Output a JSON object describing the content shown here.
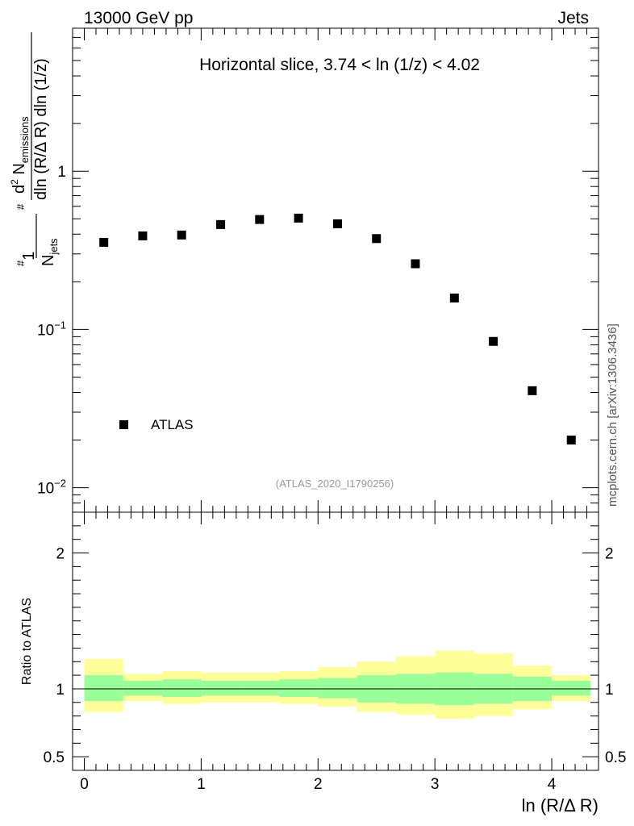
{
  "header": {
    "left": "13000 GeV pp",
    "right": "Jets"
  },
  "side_label": "mcplots.cern.ch [arXiv:1306.3436]",
  "chart_data": [
    {
      "type": "scatter",
      "title": "Horizontal slice, 3.74 < ln (1/z) < 4.02",
      "watermark": "(ATLAS_2020_I1790256)",
      "ylabel": "1/N_jets dN_emissions/dln(R/ΔR) dln(1/z)",
      "yscale": "log",
      "ylim": [
        0.007,
        8.0
      ],
      "xlim": [
        -0.1,
        4.4
      ],
      "y_tick_labels": [
        "10^-2",
        "10^-1",
        "1"
      ],
      "legend": {
        "position": "bottom-left",
        "entries": [
          "ATLAS"
        ]
      },
      "series": [
        {
          "name": "ATLAS",
          "marker": "square",
          "color": "#000000",
          "x": [
            0.167,
            0.5,
            0.833,
            1.167,
            1.5,
            1.833,
            2.167,
            2.5,
            2.833,
            3.167,
            3.5,
            3.833,
            4.167
          ],
          "y": [
            0.355,
            0.39,
            0.395,
            0.46,
            0.495,
            0.505,
            0.465,
            0.375,
            0.26,
            0.158,
            0.084,
            0.041,
            0.02
          ]
        }
      ]
    },
    {
      "type": "area",
      "ylabel": "Ratio to ATLAS",
      "xlabel": "ln (R/Δ R)",
      "ylim": [
        0.4,
        2.3
      ],
      "xlim": [
        -0.1,
        4.4
      ],
      "y_tick_labels": [
        "0.5",
        "1",
        "2"
      ],
      "x_tick_labels": [
        "0",
        "1",
        "2",
        "3",
        "4"
      ],
      "reference_line": 1.0,
      "bins": [
        0.0,
        0.333,
        0.667,
        1.0,
        1.333,
        1.667,
        2.0,
        2.333,
        2.667,
        3.0,
        3.333,
        3.667,
        4.0,
        4.333
      ],
      "band_inner": {
        "color": "#99ff99",
        "lo": [
          0.91,
          0.95,
          0.94,
          0.95,
          0.95,
          0.94,
          0.93,
          0.9,
          0.89,
          0.88,
          0.89,
          0.91,
          0.95
        ],
        "hi": [
          1.1,
          1.06,
          1.07,
          1.06,
          1.06,
          1.07,
          1.08,
          1.1,
          1.11,
          1.12,
          1.11,
          1.09,
          1.06
        ]
      },
      "band_outer": {
        "color": "#ffff99",
        "lo": [
          0.83,
          0.91,
          0.89,
          0.9,
          0.9,
          0.89,
          0.87,
          0.83,
          0.81,
          0.78,
          0.8,
          0.85,
          0.91
        ],
        "hi": [
          1.22,
          1.11,
          1.13,
          1.12,
          1.12,
          1.13,
          1.16,
          1.2,
          1.24,
          1.28,
          1.26,
          1.17,
          1.1
        ]
      }
    }
  ]
}
